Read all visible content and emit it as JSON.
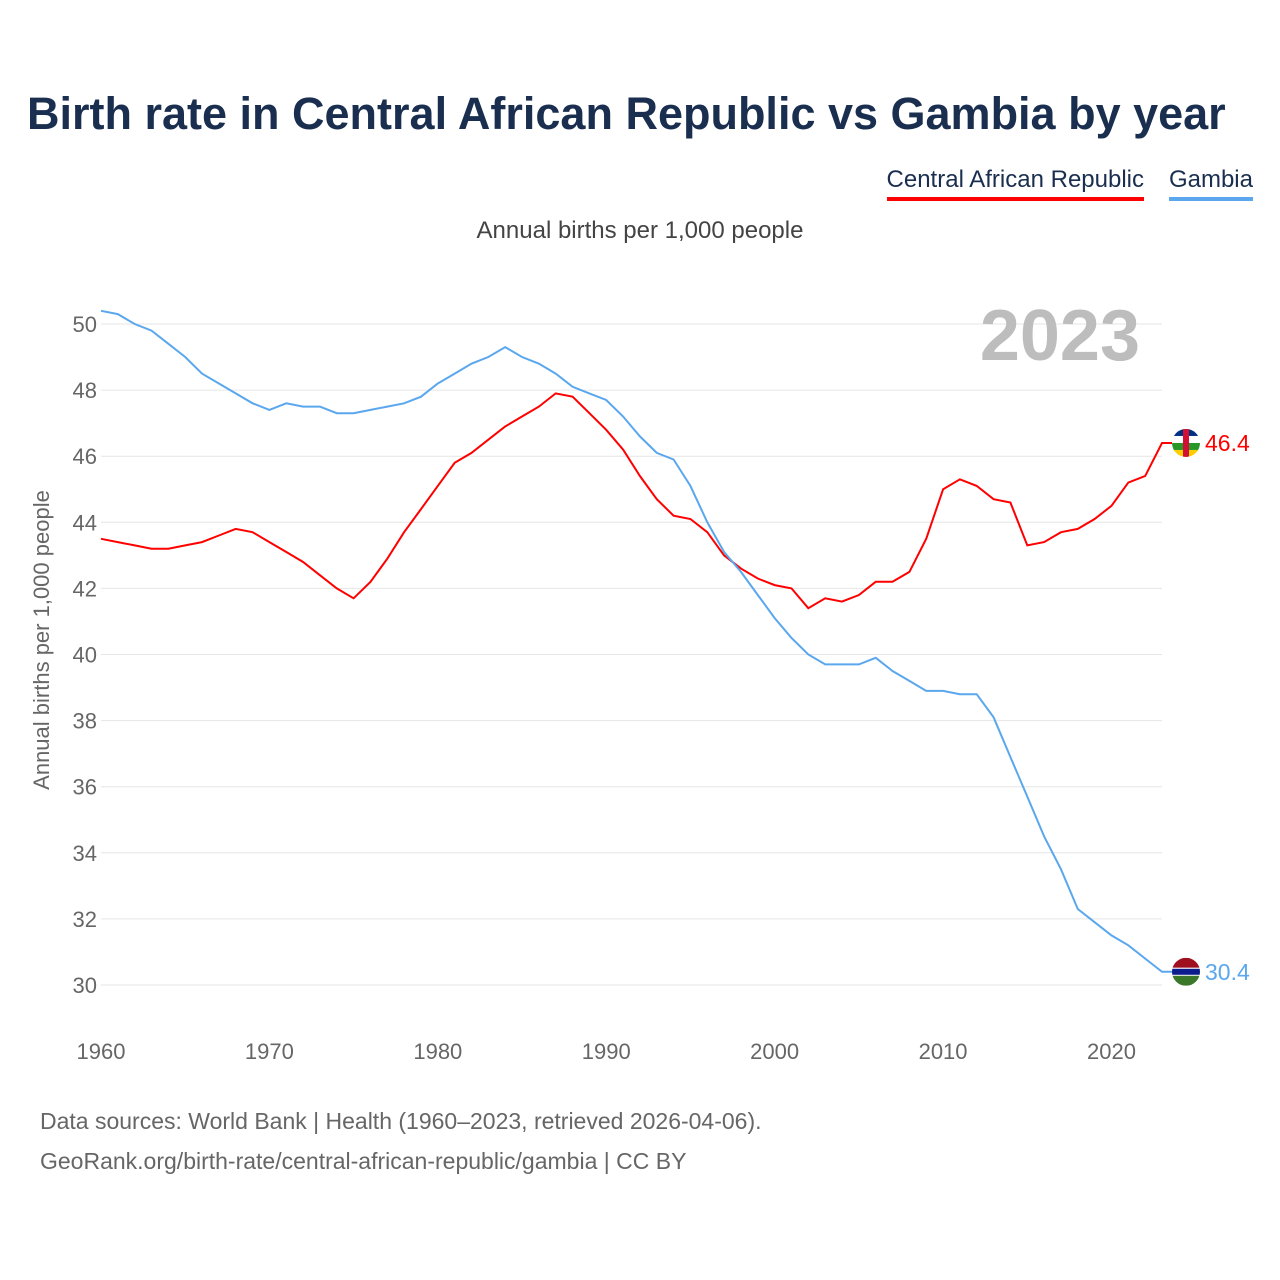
{
  "chart_data": {
    "type": "line",
    "title": "Birth rate in Central African Republic vs Gambia by year",
    "subtitle": "Annual births per 1,000 people",
    "ylabel": "Annual births per 1,000 people",
    "xlabel": "",
    "year_label": "2023",
    "xlim": [
      1960,
      2023
    ],
    "ylim": [
      29,
      51
    ],
    "xticks": [
      1960,
      1970,
      1980,
      1990,
      2000,
      2010,
      2020
    ],
    "yticks": [
      30,
      32,
      34,
      36,
      38,
      40,
      42,
      44,
      46,
      48,
      50
    ],
    "grid": true,
    "legend_position": "top-right",
    "x": [
      1960,
      1961,
      1962,
      1963,
      1964,
      1965,
      1966,
      1967,
      1968,
      1969,
      1970,
      1971,
      1972,
      1973,
      1974,
      1975,
      1976,
      1977,
      1978,
      1979,
      1980,
      1981,
      1982,
      1983,
      1984,
      1985,
      1986,
      1987,
      1988,
      1989,
      1990,
      1991,
      1992,
      1993,
      1994,
      1995,
      1996,
      1997,
      1998,
      1999,
      2000,
      2001,
      2002,
      2003,
      2004,
      2005,
      2006,
      2007,
      2008,
      2009,
      2010,
      2011,
      2012,
      2013,
      2014,
      2015,
      2016,
      2017,
      2018,
      2019,
      2020,
      2021,
      2022,
      2023
    ],
    "series": [
      {
        "name": "Central African Republic",
        "color": "#ff0000",
        "end_label": "46.4",
        "values": [
          43.5,
          43.4,
          43.3,
          43.2,
          43.2,
          43.3,
          43.4,
          43.6,
          43.8,
          43.7,
          43.4,
          43.1,
          42.8,
          42.4,
          42.0,
          41.7,
          42.2,
          42.9,
          43.7,
          44.4,
          45.1,
          45.8,
          46.1,
          46.5,
          46.9,
          47.2,
          47.5,
          47.9,
          47.8,
          47.3,
          46.8,
          46.2,
          45.4,
          44.7,
          44.2,
          44.1,
          43.7,
          43.0,
          42.6,
          42.3,
          42.1,
          42.0,
          41.4,
          41.7,
          41.6,
          41.8,
          42.2,
          42.2,
          42.5,
          43.5,
          45.0,
          45.3,
          45.1,
          44.7,
          44.6,
          43.3,
          43.4,
          43.7,
          43.8,
          44.1,
          44.5,
          45.2,
          45.4,
          46.4
        ]
      },
      {
        "name": "Gambia",
        "color": "#5aa7ee",
        "end_label": "30.4",
        "values": [
          50.4,
          50.3,
          50.0,
          49.8,
          49.4,
          49.0,
          48.5,
          48.2,
          47.9,
          47.6,
          47.4,
          47.6,
          47.5,
          47.5,
          47.3,
          47.3,
          47.4,
          47.5,
          47.6,
          47.8,
          48.2,
          48.5,
          48.8,
          49.0,
          49.3,
          49.0,
          48.8,
          48.5,
          48.1,
          47.9,
          47.7,
          47.2,
          46.6,
          46.1,
          45.9,
          45.1,
          44.0,
          43.1,
          42.5,
          41.8,
          41.1,
          40.5,
          40.0,
          39.7,
          39.7,
          39.7,
          39.9,
          39.5,
          39.2,
          38.9,
          38.9,
          38.8,
          38.8,
          38.1,
          36.9,
          35.7,
          34.5,
          33.5,
          32.3,
          31.9,
          31.5,
          31.2,
          30.8,
          30.4
        ]
      }
    ],
    "footer": [
      "Data sources: World Bank | Health (1960–2023, retrieved 2026-04-06).",
      "GeoRank.org/birth-rate/central-african-republic/gambia | CC BY"
    ]
  }
}
